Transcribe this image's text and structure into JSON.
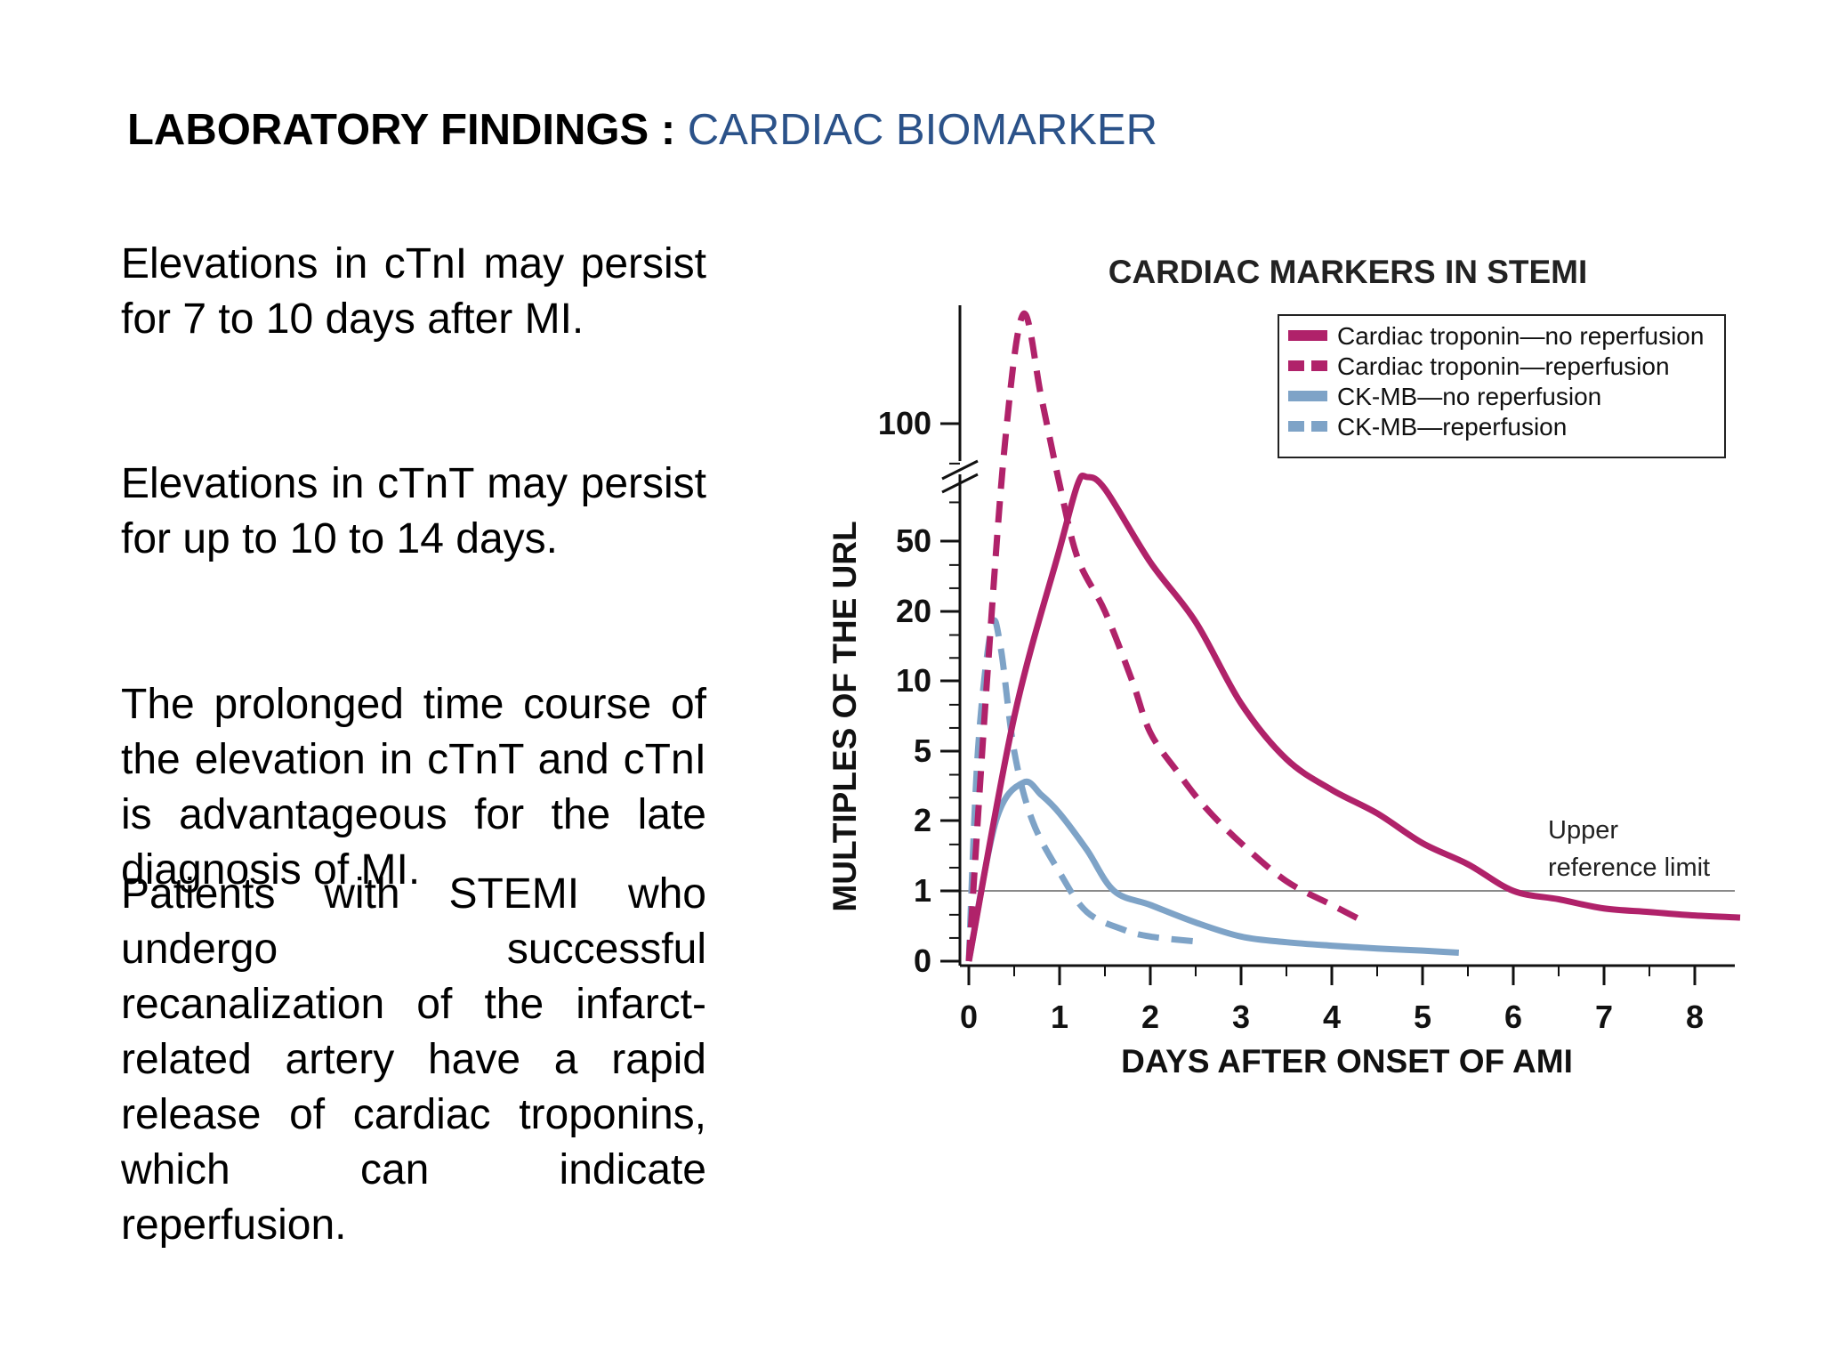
{
  "slide": {
    "title_bold": "LABORATORY FINDINGS : ",
    "title_accent": "CARDIAC BIOMARKER",
    "paragraphs": [
      "Elevations in cTnI may persist for 7 to 10 days after MI.",
      "Elevations in cTnT may persist for up to 10 to 14 days.",
      "The prolonged time course of the elevation in cTnT and cTnI is advantageous for the late diagnosis of MI.",
      "Patients with STEMI who undergo successful recanalization of the infarct-related artery have a rapid release of cardiac troponins, which can indicate reperfusion."
    ]
  },
  "colors": {
    "title_accent": "#2b5289",
    "troponin": "#b0226a",
    "ckmb": "#7ea3c7",
    "reference_line": "#8a8a8a",
    "axis": "#111111"
  },
  "chart_data": {
    "type": "line",
    "title": "CARDIAC MARKERS IN STEMI",
    "xlabel": "DAYS AFTER ONSET OF AMI",
    "ylabel": "MULTIPLES OF THE URL",
    "x_ticks": [
      "0",
      "1",
      "2",
      "3",
      "4",
      "5",
      "6",
      "7",
      "8"
    ],
    "xlim": [
      0,
      8.5
    ],
    "y_ticks": [
      "0",
      "1",
      "2",
      "5",
      "10",
      "20",
      "50",
      "100"
    ],
    "y_scale": "log-like with axis break between 50 and 100",
    "legend_position": "top-right",
    "reference_line": {
      "y": 1,
      "label_line1": "Upper",
      "label_line2": "reference limit"
    },
    "series": [
      {
        "name": "Cardiac troponin—no reperfusion",
        "color": "#b0226a",
        "style": "solid",
        "points": [
          [
            0,
            0
          ],
          [
            0.5,
            7
          ],
          [
            1.0,
            45
          ],
          [
            1.2,
            70
          ],
          [
            1.3,
            73
          ],
          [
            1.5,
            68
          ],
          [
            2.0,
            38
          ],
          [
            2.5,
            18
          ],
          [
            3.0,
            8
          ],
          [
            3.5,
            4.5
          ],
          [
            4.0,
            3
          ],
          [
            4.5,
            2.2
          ],
          [
            5.0,
            1.6
          ],
          [
            5.5,
            1.3
          ],
          [
            6.0,
            1.0
          ],
          [
            6.5,
            0.88
          ],
          [
            7.0,
            0.75
          ],
          [
            7.5,
            0.7
          ],
          [
            8.0,
            0.65
          ],
          [
            8.5,
            0.62
          ]
        ]
      },
      {
        "name": "Cardiac troponin—reperfusion",
        "color": "#b0226a",
        "style": "dashed",
        "points": [
          [
            0,
            0
          ],
          [
            0.2,
            10
          ],
          [
            0.4,
            90
          ],
          [
            0.6,
            150
          ],
          [
            0.8,
            110
          ],
          [
            1.0,
            70
          ],
          [
            1.2,
            40
          ],
          [
            1.5,
            20
          ],
          [
            1.8,
            10
          ],
          [
            2.0,
            6
          ],
          [
            2.3,
            3.8
          ],
          [
            2.6,
            2.4
          ],
          [
            3.0,
            1.6
          ],
          [
            3.5,
            1.1
          ],
          [
            4.0,
            0.8
          ],
          [
            4.3,
            0.6
          ]
        ]
      },
      {
        "name": "CK-MB—no reperfusion",
        "color": "#7ea3c7",
        "style": "solid",
        "points": [
          [
            0,
            0
          ],
          [
            0.3,
            2
          ],
          [
            0.6,
            3.3
          ],
          [
            0.8,
            2.8
          ],
          [
            1.0,
            2.2
          ],
          [
            1.3,
            1.5
          ],
          [
            1.6,
            1.0
          ],
          [
            2.0,
            0.8
          ],
          [
            2.5,
            0.55
          ],
          [
            3.0,
            0.35
          ],
          [
            3.5,
            0.27
          ],
          [
            4.0,
            0.22
          ],
          [
            4.5,
            0.18
          ],
          [
            5.0,
            0.15
          ],
          [
            5.4,
            0.12
          ]
        ]
      },
      {
        "name": "CK-MB—reperfusion",
        "color": "#7ea3c7",
        "style": "dashed",
        "points": [
          [
            0,
            0
          ],
          [
            0.1,
            5
          ],
          [
            0.25,
            17
          ],
          [
            0.35,
            14
          ],
          [
            0.5,
            5
          ],
          [
            0.7,
            2
          ],
          [
            1.0,
            1.2
          ],
          [
            1.3,
            0.7
          ],
          [
            1.7,
            0.45
          ],
          [
            2.0,
            0.35
          ],
          [
            2.5,
            0.28
          ]
        ]
      }
    ]
  }
}
